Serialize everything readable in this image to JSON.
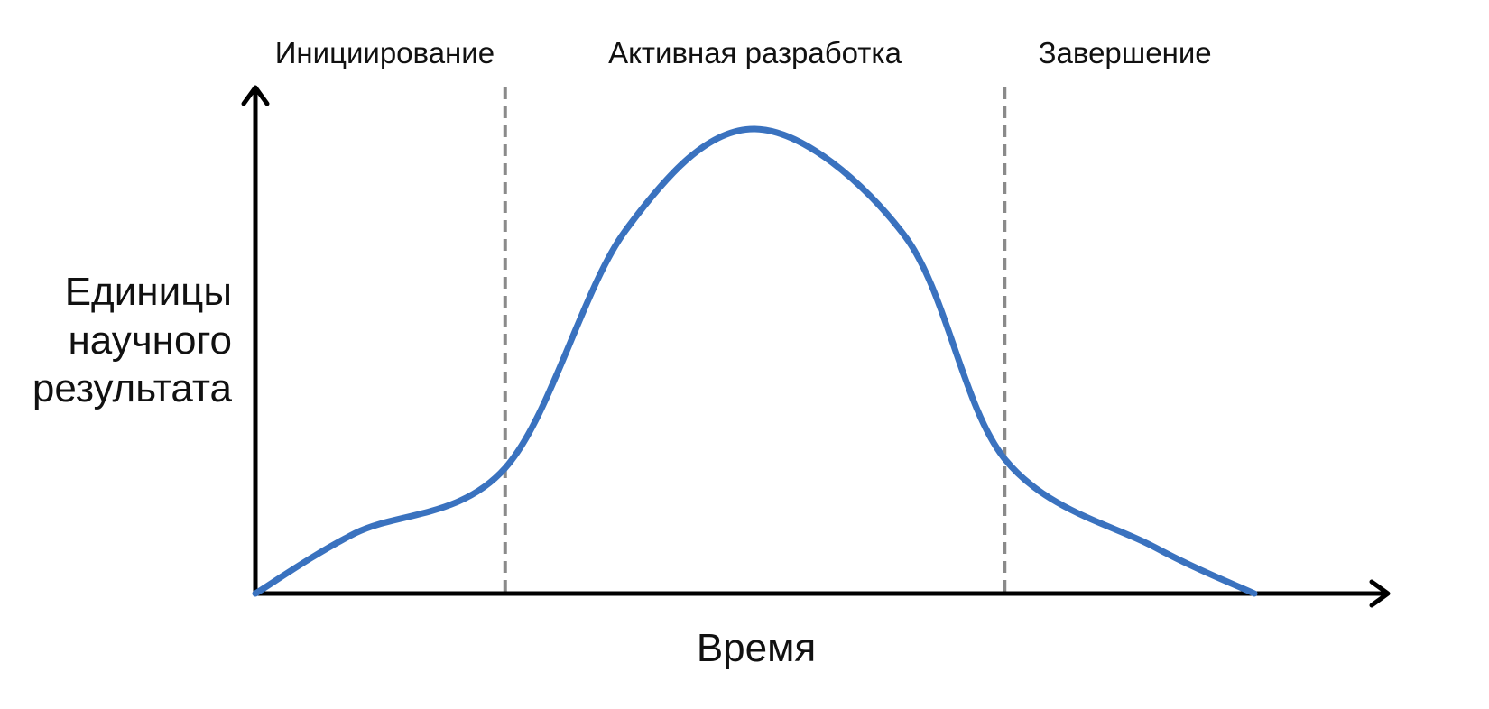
{
  "chart_data": {
    "type": "line",
    "title": "",
    "xlabel": "Время",
    "ylabel_lines": [
      "Единицы",
      "научного",
      "результата"
    ],
    "axis_ticks": "none",
    "phases": [
      "Инициирование",
      "Активная разработка",
      "Завершение"
    ],
    "phase_boundaries": [
      0.25,
      0.75
    ],
    "xlim": [
      0,
      1
    ],
    "ylim": [
      0,
      1
    ],
    "series": [
      {
        "color": "#3a72bf",
        "x": [
          0.0,
          0.1,
          0.25,
          0.37,
          0.5,
          0.65,
          0.75,
          0.9,
          1.0
        ],
        "y": [
          0.0,
          0.13,
          0.27,
          0.78,
          1.0,
          0.77,
          0.29,
          0.1,
          0.0
        ]
      }
    ],
    "divider_color": "#8a8a8a",
    "axis_color": "#000000"
  }
}
